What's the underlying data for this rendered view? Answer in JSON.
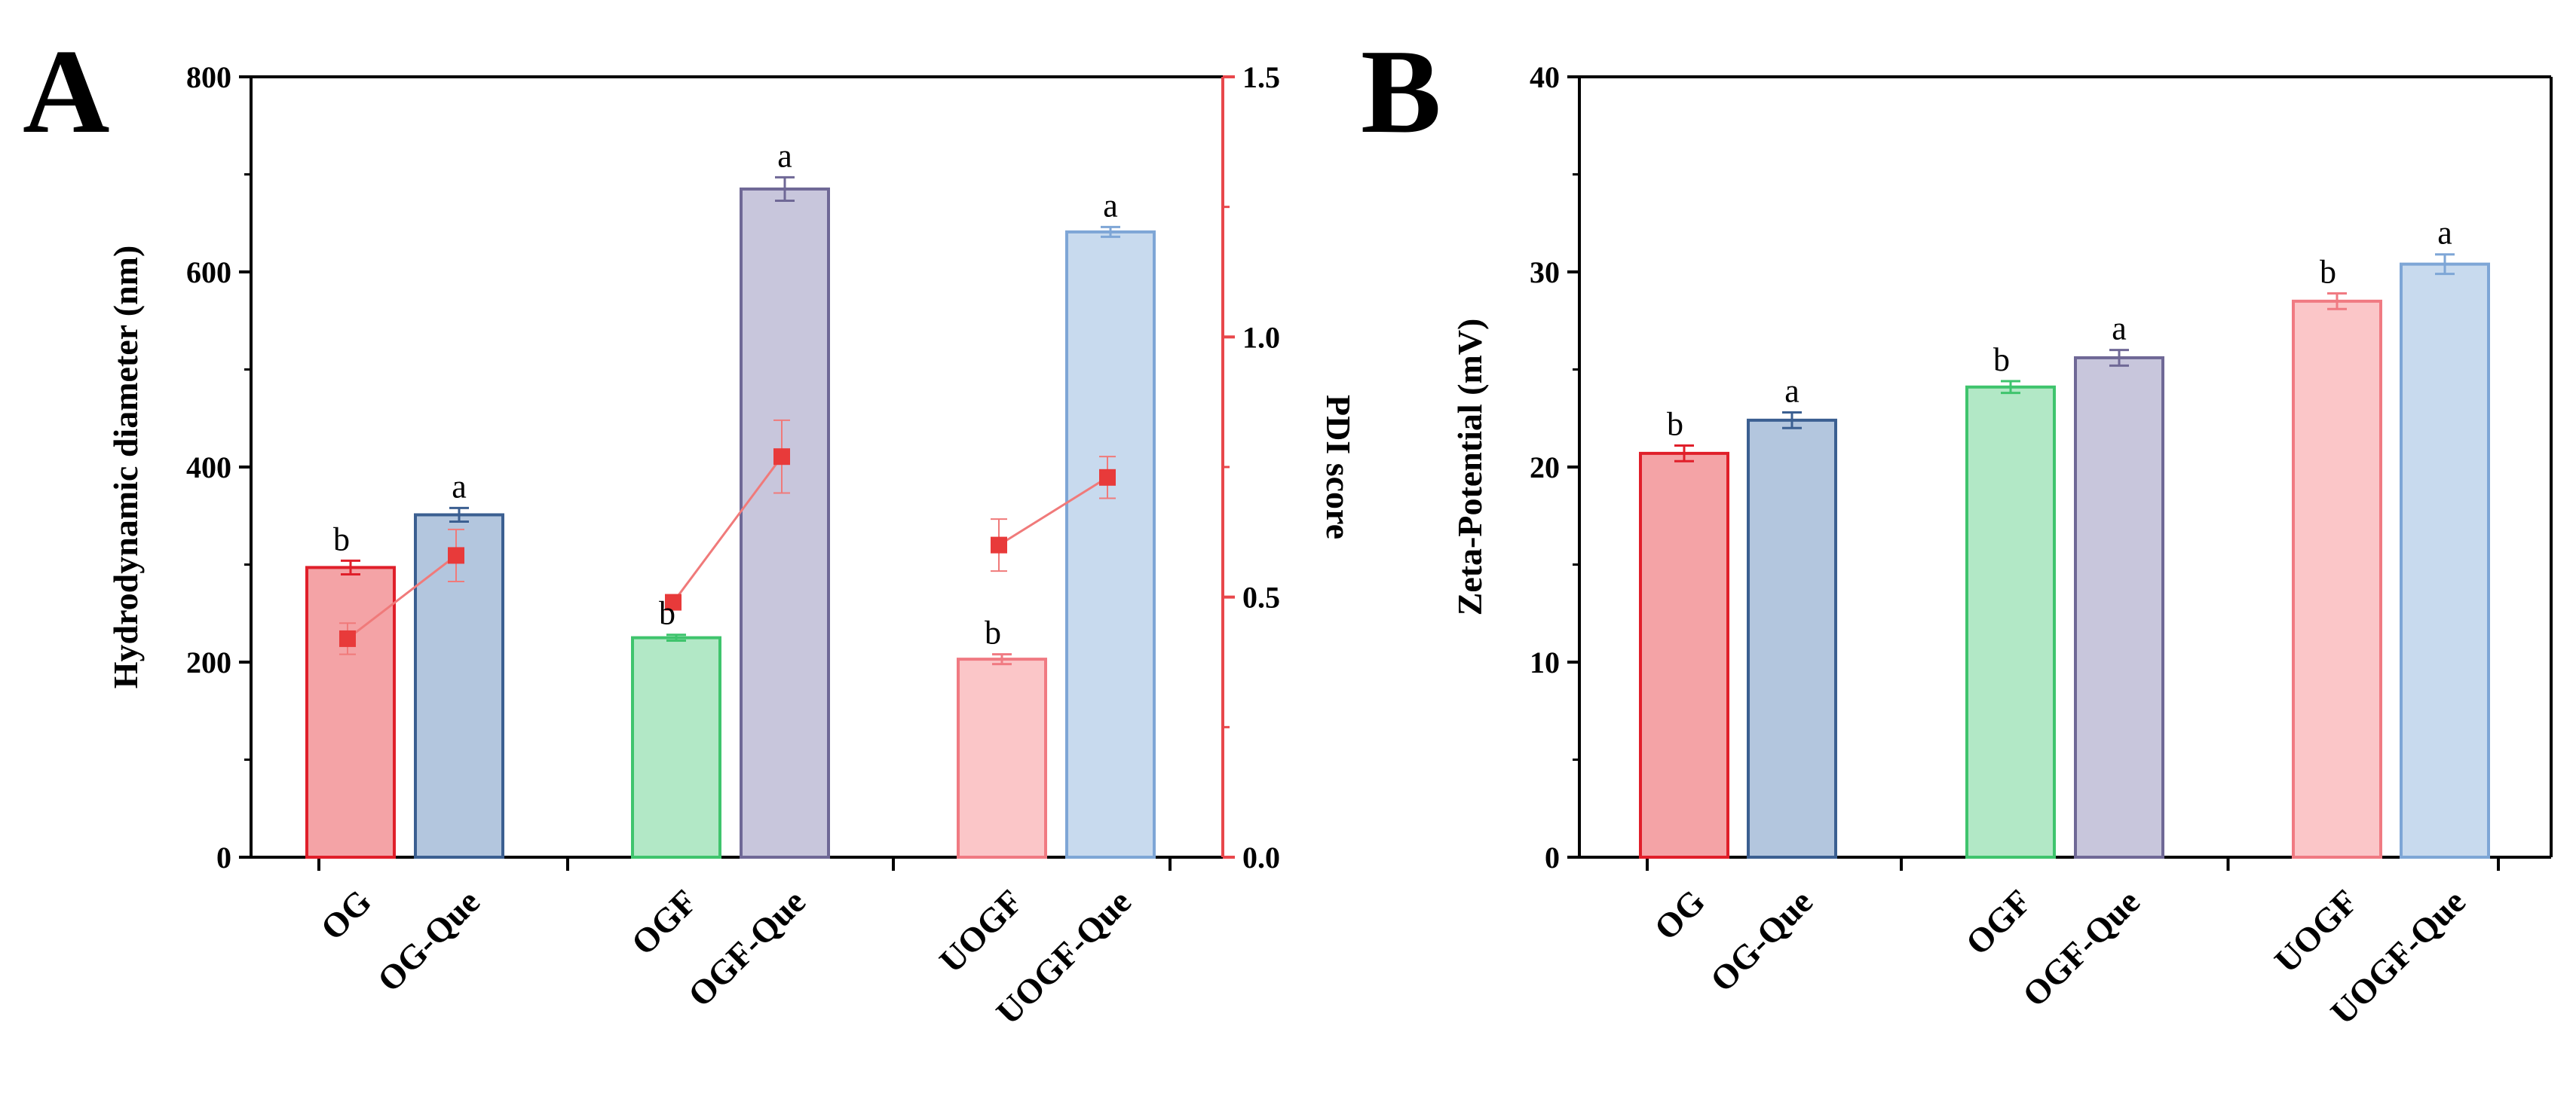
{
  "colors": {
    "axis": "#000000",
    "pdi_axis": "#e8474b",
    "pdi_line": "#f07a7a",
    "pdi_marker": "#e83a3a",
    "OG": {
      "fill": "#f4a3a6",
      "stroke": "#e01f2a"
    },
    "OG-Que": {
      "fill": "#b3c6de",
      "stroke": "#3b5f91"
    },
    "OGF": {
      "fill": "#b2e8c6",
      "stroke": "#3fc46d"
    },
    "OGF-Que": {
      "fill": "#c8c6dc",
      "stroke": "#6f6896"
    },
    "UOGF": {
      "fill": "#fbc6c8",
      "stroke": "#f07a82"
    },
    "UOGF-Que": {
      "fill": "#c8daee",
      "stroke": "#7ea6d6"
    }
  },
  "chart_data": [
    {
      "panel": "A",
      "type": "bar",
      "categories": [
        "OG",
        "OG-Que",
        "OGF",
        "OGF-Que",
        "UOGF",
        "UOGF-Que"
      ],
      "groups": [
        [
          "OG",
          "OG-Que"
        ],
        [
          "OGF",
          "OGF-Que"
        ],
        [
          "UOGF",
          "UOGF-Que"
        ]
      ],
      "ylabel": "Hydrodynamic diameter (nm)",
      "ylim": [
        0,
        800
      ],
      "yticks": [
        0,
        200,
        400,
        600,
        800
      ],
      "y2label": "PDI score",
      "y2lim": [
        0.0,
        1.5
      ],
      "y2ticks": [
        "0.0",
        "0.5",
        "1.0",
        "1.5"
      ],
      "series": [
        {
          "name": "",
          "axis": "left",
          "values": [
            297,
            351,
            225,
            685,
            203,
            641
          ],
          "errors": [
            7,
            7,
            3,
            12,
            5,
            5
          ],
          "labels": [
            "b",
            "a",
            "b",
            "a",
            "b",
            "a"
          ]
        },
        {
          "name": "",
          "axis": "right",
          "type": "line",
          "pairs": [
            [
              0,
              1
            ],
            [
              2,
              3
            ],
            [
              4,
              5
            ]
          ],
          "values": [
            0.42,
            0.58,
            0.49,
            0.77,
            0.6,
            0.73
          ],
          "errors": [
            0.03,
            0.05,
            0.01,
            0.07,
            0.05,
            0.04
          ]
        }
      ]
    },
    {
      "panel": "B",
      "type": "bar",
      "categories": [
        "OG",
        "OG-Que",
        "OGF",
        "OGF-Que",
        "UOGF",
        "UOGF-Que"
      ],
      "groups": [
        [
          "OG",
          "OG-Que"
        ],
        [
          "OGF",
          "OGF-Que"
        ],
        [
          "UOGF",
          "UOGF-Que"
        ]
      ],
      "ylabel": "Zeta-Potential (mV)",
      "ylim": [
        0,
        40
      ],
      "yticks": [
        0,
        10,
        20,
        30,
        40
      ],
      "series": [
        {
          "name": "",
          "values": [
            20.7,
            22.4,
            24.1,
            25.6,
            28.5,
            30.4
          ],
          "errors": [
            0.4,
            0.4,
            0.3,
            0.4,
            0.4,
            0.5
          ],
          "labels": [
            "b",
            "a",
            "b",
            "a",
            "b",
            "a"
          ]
        }
      ]
    }
  ]
}
